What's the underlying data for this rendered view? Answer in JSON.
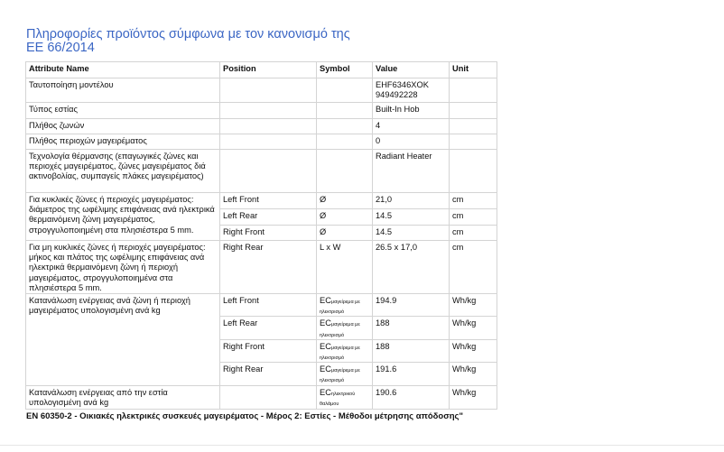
{
  "title_line1": "Πληροφορίες προϊόντος σύμφωνα με τον κανονισμό της",
  "title_line2": "ΕΕ 66/2014",
  "headers": {
    "attribute": "Attribute Name",
    "position": "Position",
    "symbol": "Symbol",
    "value": "Value",
    "unit": "Unit"
  },
  "rows": [
    {
      "attribute": "Ταυτοποίηση μοντέλου",
      "value_line1": "EHF6346XOK",
      "value_line2": "949492228"
    },
    {
      "attribute": "Τύπος εστίας",
      "value": "Built-In Hob"
    },
    {
      "attribute": "Πλήθος ζωνών",
      "value": "4"
    },
    {
      "attribute": "Πλήθος περιοχών μαγειρέματος",
      "value": "0"
    },
    {
      "attribute": "Τεχνολογία θέρμανσης (επαγωγικές ζώνες και περιοχές μαγειρέματος, ζώνες μαγειρέματος διά ακτινοβολίας, συμπαγείς πλάκες μαγειρέματος)",
      "value": "Radiant Heater"
    }
  ],
  "circular": {
    "attribute": "Για κυκλικές ζώνες ή περιοχές μαγειρέματος: διάμετρος της ωφέλιμης επιφάνειας ανά ηλεκτρικά θερμαινόμενη ζώνη μαγειρέματος, στρογγυλοποιημένη στα πλησιέστερα 5 mm.",
    "entries": [
      {
        "position": "Left Front",
        "symbol": "Ø",
        "value": "21,0",
        "unit": "cm"
      },
      {
        "position": "Left Rear",
        "symbol": "Ø",
        "value": "14.5",
        "unit": "cm"
      },
      {
        "position": "Right Front",
        "symbol": "Ø",
        "value": "14.5",
        "unit": "cm"
      }
    ]
  },
  "noncircular": {
    "attribute": "Για μη κυκλικές ζώνες ή περιοχές μαγειρέματος: μήκος και πλάτος της ωφέλιμης επιφάνειας ανά ηλεκτρικά θερμαινόμενη ζώνη ή περιοχή μαγειρέματος, στρογγυλοποιημένα στα πλησιέστερα 5 mm.",
    "position": "Right Rear",
    "symbol": "L x W",
    "value": "26.5 x 17,0",
    "unit": "cm"
  },
  "energy_zone": {
    "attribute": "Κατανάλωση ενέργειας ανά ζώνη ή περιοχή μαγειρέματος υπολογισμένη ανά kg",
    "symbol_main": "EC",
    "symbol_sub": "μαγείρεμα με ηλεκτρισμό",
    "entries": [
      {
        "position": "Left Front",
        "value": "194.9",
        "unit": "Wh/kg"
      },
      {
        "position": "Left Rear",
        "value": "188",
        "unit": "Wh/kg"
      },
      {
        "position": "Right Front",
        "value": "188",
        "unit": "Wh/kg"
      },
      {
        "position": "Right Rear",
        "value": "191.6",
        "unit": "Wh/kg"
      }
    ]
  },
  "energy_hob": {
    "attribute": "Κατανάλωση ενέργειας από την εστία υπολογισμένη ανά kg",
    "symbol_main": "EC",
    "symbol_sub": "ηλεκτρικού θαλάμου",
    "value": "190.6",
    "unit": "Wh/kg"
  },
  "footer": "EN 60350-2 - Οικιακές ηλεκτρικές συσκευές μαγειρέματος - Μέρος 2: Εστίες - Μέθοδοι μέτρησης απόδοσης\""
}
